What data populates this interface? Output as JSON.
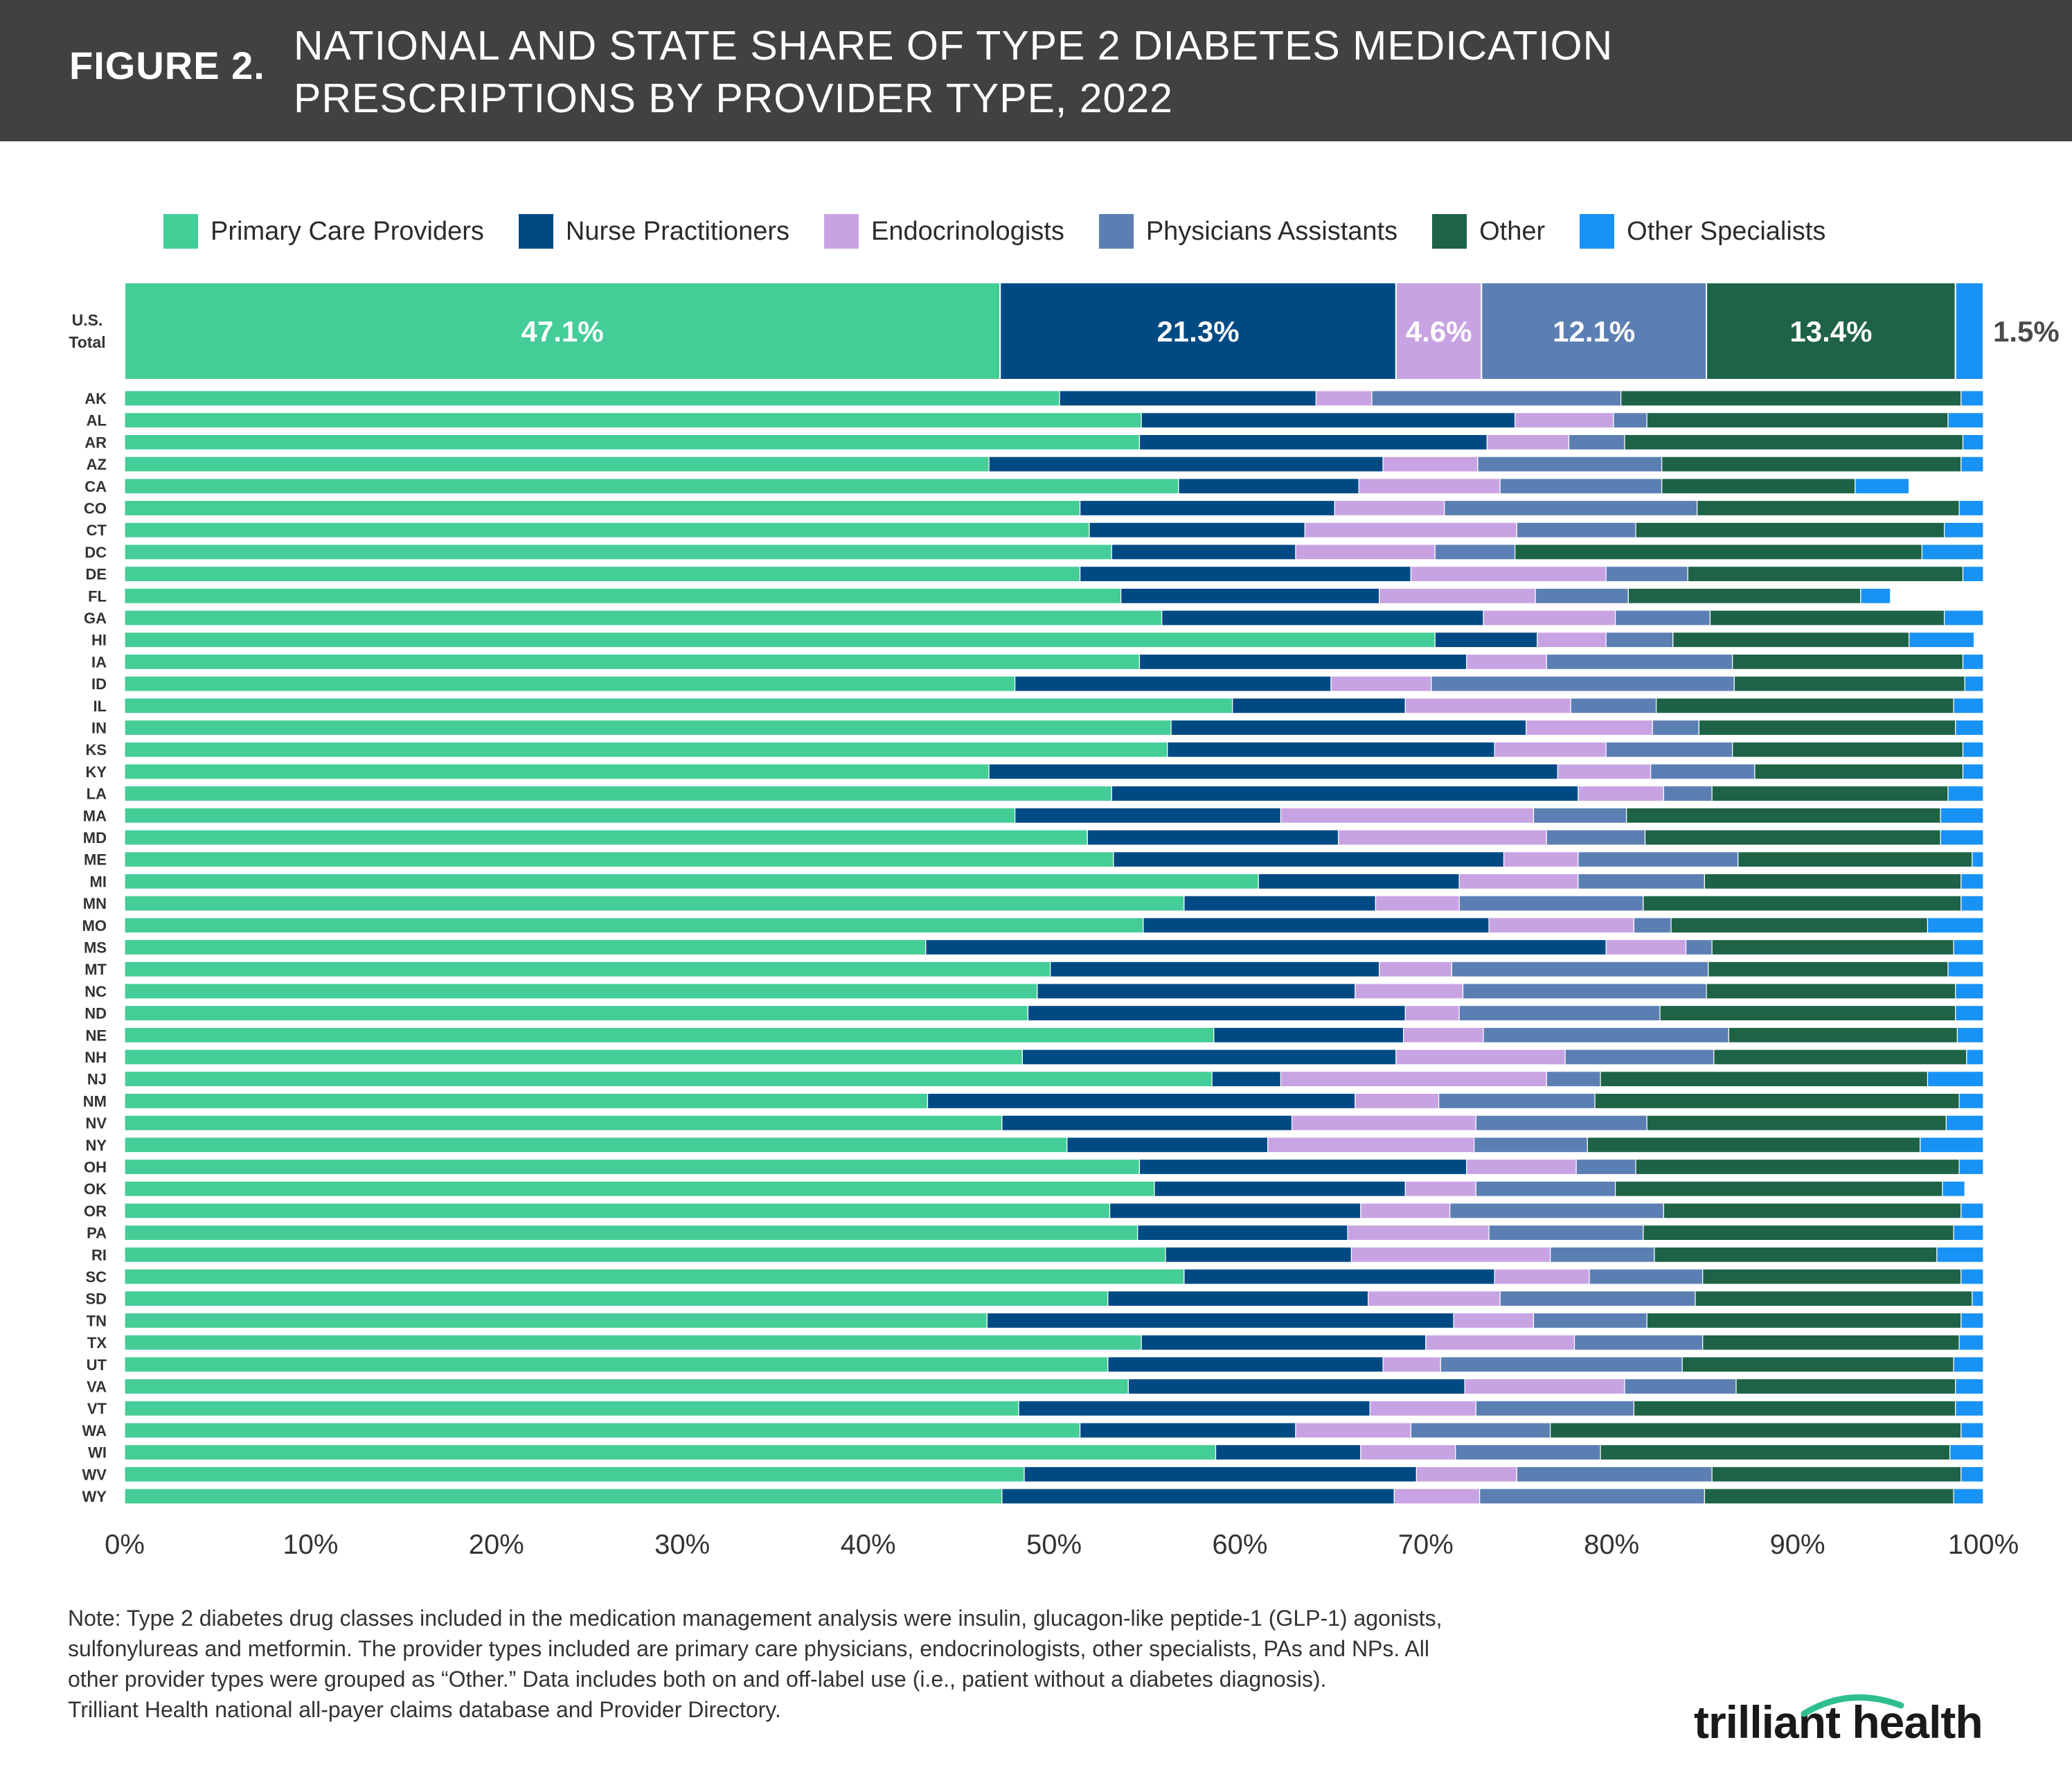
{
  "header": {
    "figure_label": "FIGURE 2.",
    "title_line1": "NATIONAL AND STATE SHARE OF TYPE 2 DIABETES MEDICATION",
    "title_line2": "PRESCRIPTIONS BY PROVIDER TYPE, 2022"
  },
  "colors": {
    "header_bg": "#414141",
    "pcp": "#44CD97",
    "np": "#004A84",
    "endo": "#C8A3E3",
    "pa": "#5B7FB3",
    "other": "#1E6346",
    "os": "#1892F5"
  },
  "chart_data": {
    "type": "bar",
    "orientation": "horizontal",
    "stacked": true,
    "xlim": [
      0,
      100
    ],
    "x_ticks": [
      "0%",
      "10%",
      "20%",
      "30%",
      "40%",
      "50%",
      "60%",
      "70%",
      "80%",
      "90%",
      "100%"
    ],
    "legend": {
      "placement": "top",
      "entries": [
        "Primary Care Providers",
        "Nurse Practitioners",
        "Endocrinologists",
        "Physicians Assistants",
        "Other",
        "Other Specialists"
      ]
    },
    "total": {
      "label_line1": "U.S.",
      "label_line2": "Total",
      "values": [
        47.1,
        21.3,
        4.6,
        12.1,
        13.4,
        1.5
      ],
      "value_labels": [
        "47.1%",
        "21.3%",
        "4.6%",
        "12.1%",
        "13.4%",
        "1.5%"
      ]
    },
    "categories": [
      "AK",
      "AL",
      "AR",
      "AZ",
      "CA",
      "CO",
      "CT",
      "DC",
      "DE",
      "FL",
      "GA",
      "HI",
      "IA",
      "ID",
      "IL",
      "IN",
      "KS",
      "KY",
      "LA",
      "MA",
      "MD",
      "ME",
      "MI",
      "MN",
      "MO",
      "MS",
      "MT",
      "NC",
      "ND",
      "NE",
      "NH",
      "NJ",
      "NM",
      "NV",
      "NY",
      "OH",
      "OK",
      "OR",
      "PA",
      "RI",
      "SC",
      "SD",
      "TN",
      "TX",
      "UT",
      "VA",
      "VT",
      "WA",
      "WI",
      "WV",
      "WY"
    ],
    "series": [
      {
        "name": "Primary Care Providers",
        "values": [
          50.3,
          54.7,
          54.6,
          46.5,
          56.7,
          51.4,
          51.9,
          53.1,
          51.4,
          53.6,
          55.8,
          70.5,
          54.6,
          47.9,
          59.6,
          56.3,
          56.1,
          46.5,
          53.1,
          47.9,
          51.8,
          53.2,
          61.0,
          57.0,
          54.8,
          43.1,
          49.8,
          49.1,
          48.6,
          58.6,
          48.3,
          58.5,
          43.2,
          47.2,
          50.7,
          54.6,
          55.4,
          53.0,
          54.5,
          56.0,
          57.0,
          52.9,
          46.4,
          54.7,
          52.9,
          54.0,
          48.1,
          51.4,
          58.7,
          48.4,
          47.2
        ]
      },
      {
        "name": "Nurse Practitioners",
        "values": [
          13.8,
          20.1,
          18.7,
          21.2,
          9.7,
          13.7,
          11.6,
          9.9,
          17.8,
          13.9,
          17.3,
          5.5,
          17.6,
          17.0,
          9.3,
          19.1,
          17.6,
          30.6,
          25.1,
          14.3,
          13.5,
          21.0,
          10.8,
          10.3,
          18.6,
          36.6,
          17.7,
          17.1,
          20.3,
          10.2,
          20.1,
          3.7,
          23.0,
          15.6,
          10.8,
          17.6,
          13.5,
          13.5,
          11.3,
          10.0,
          16.7,
          14.0,
          25.1,
          15.3,
          14.8,
          18.1,
          18.9,
          11.6,
          7.8,
          21.1,
          21.1
        ]
      },
      {
        "name": "Endocrinologists",
        "values": [
          3.0,
          5.3,
          4.4,
          5.1,
          7.6,
          5.9,
          11.4,
          7.5,
          10.5,
          8.4,
          7.1,
          3.7,
          4.3,
          5.4,
          8.9,
          6.8,
          6.0,
          5.0,
          4.6,
          13.6,
          11.2,
          4.0,
          6.4,
          4.5,
          7.8,
          4.3,
          3.9,
          5.8,
          2.9,
          4.3,
          9.1,
          14.3,
          4.5,
          9.9,
          11.1,
          5.9,
          3.8,
          4.8,
          7.6,
          10.7,
          5.1,
          7.1,
          4.3,
          8.0,
          3.1,
          8.6,
          5.7,
          6.2,
          5.1,
          5.4,
          4.6
        ]
      },
      {
        "name": "Physicians Assistants",
        "values": [
          13.4,
          1.8,
          3.0,
          9.9,
          8.7,
          13.6,
          6.4,
          4.3,
          4.4,
          5.0,
          5.1,
          3.6,
          10.0,
          16.3,
          4.6,
          2.5,
          6.8,
          5.6,
          2.6,
          5.0,
          5.3,
          8.6,
          6.8,
          9.9,
          2.0,
          1.4,
          13.8,
          13.1,
          10.8,
          13.2,
          8.0,
          2.9,
          8.4,
          9.2,
          6.1,
          3.2,
          7.5,
          11.5,
          8.3,
          5.6,
          6.1,
          10.5,
          6.1,
          6.9,
          13.0,
          6.0,
          8.5,
          7.5,
          7.8,
          10.5,
          12.1
        ]
      },
      {
        "name": "Other",
        "values": [
          18.3,
          16.2,
          18.2,
          16.1,
          10.4,
          14.1,
          16.6,
          21.9,
          14.8,
          12.5,
          12.6,
          12.7,
          12.4,
          12.4,
          16.0,
          13.8,
          12.4,
          11.2,
          12.7,
          16.9,
          15.9,
          12.6,
          13.8,
          17.1,
          13.8,
          13.0,
          12.9,
          13.4,
          15.9,
          12.3,
          13.6,
          17.6,
          19.6,
          16.1,
          17.9,
          17.4,
          17.6,
          16.0,
          16.7,
          15.2,
          13.9,
          14.9,
          16.9,
          13.8,
          14.6,
          11.8,
          17.3,
          22.1,
          18.8,
          13.4,
          13.4
        ]
      },
      {
        "name": "Other Specialists",
        "values": [
          1.2,
          1.9,
          1.1,
          1.2,
          2.9,
          1.3,
          2.1,
          3.3,
          1.1,
          1.6,
          2.1,
          3.5,
          1.1,
          1.0,
          1.6,
          1.5,
          1.1,
          1.1,
          1.9,
          2.3,
          2.3,
          0.6,
          1.2,
          1.2,
          3.0,
          1.6,
          1.9,
          1.5,
          1.5,
          1.4,
          0.9,
          3.0,
          1.3,
          2.0,
          3.4,
          1.3,
          1.2,
          1.2,
          1.6,
          2.5,
          1.2,
          0.6,
          1.2,
          1.3,
          1.6,
          1.5,
          1.5,
          1.2,
          1.8,
          1.2,
          1.6
        ]
      }
    ]
  },
  "note": {
    "line1": "Note: Type 2 diabetes drug classes included in the medication management analysis were insulin, glucagon-like peptide-1 (GLP-1) agonists,",
    "line2": "sulfonylureas and metformin. The provider types included are primary care physicians, endocrinologists, other specialists, PAs and NPs. All",
    "line3": "other provider types were grouped as “Other.” Data includes both on and off-label use (i.e., patient without a diabetes diagnosis).",
    "line4": "Trilliant Health national all-payer claims database and Provider Directory."
  },
  "logo": {
    "text": "trilliant health"
  }
}
